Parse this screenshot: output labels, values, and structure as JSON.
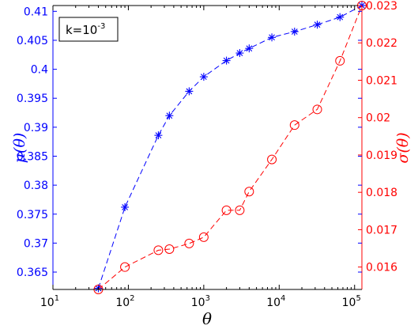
{
  "chart_data": {
    "type": "line",
    "title": "",
    "annotation": {
      "base": "k=10",
      "exp": "-3"
    },
    "xlabel": "θ",
    "x_scale": "log",
    "xlim": [
      10,
      125000
    ],
    "x_ticks": [
      {
        "value": 10,
        "base": "10",
        "exp": "1"
      },
      {
        "value": 100,
        "base": "10",
        "exp": "2"
      },
      {
        "value": 1000,
        "base": "10",
        "exp": "3"
      },
      {
        "value": 10000,
        "base": "10",
        "exp": "4"
      },
      {
        "value": 100000,
        "base": "10",
        "exp": "5"
      }
    ],
    "ylabel_left": "μ(θ)",
    "ylabel_right": "σ(θ)",
    "ylim_left": [
      0.362,
      0.411
    ],
    "ylim_right": [
      0.0154,
      0.023
    ],
    "y_ticks_left": [
      "0.365",
      "0.37",
      "0.375",
      "0.38",
      "0.385",
      "0.39",
      "0.395",
      "0.4",
      "0.405",
      "0.41"
    ],
    "y_ticks_right": [
      "0.016",
      "0.017",
      "0.018",
      "0.019",
      "0.02",
      "0.021",
      "0.022",
      "0.023"
    ],
    "grid": false,
    "legend": "none",
    "series": [
      {
        "axis": "left",
        "color": "#0000ff",
        "marker": "asterisk",
        "line": "dashed",
        "x": [
          40,
          90,
          250,
          350,
          640,
          1000,
          2000,
          3000,
          4000,
          8000,
          16000,
          32000,
          64000,
          125000
        ],
        "values": [
          0.3622,
          0.3762,
          0.3886,
          0.392,
          0.3962,
          0.3987,
          0.4015,
          0.4028,
          0.4036,
          0.4055,
          0.4065,
          0.4077,
          0.409,
          0.411
        ]
      },
      {
        "axis": "right",
        "color": "#ff0000",
        "marker": "circle",
        "line": "dashed",
        "x": [
          40,
          90,
          250,
          350,
          640,
          1000,
          2000,
          3000,
          4000,
          8000,
          16000,
          32000,
          64000,
          125000
        ],
        "values": [
          0.0154,
          0.016,
          0.01645,
          0.01648,
          0.01663,
          0.0168,
          0.01752,
          0.01752,
          0.01802,
          0.01888,
          0.0198,
          0.02022,
          0.02152,
          0.023
        ]
      }
    ]
  }
}
